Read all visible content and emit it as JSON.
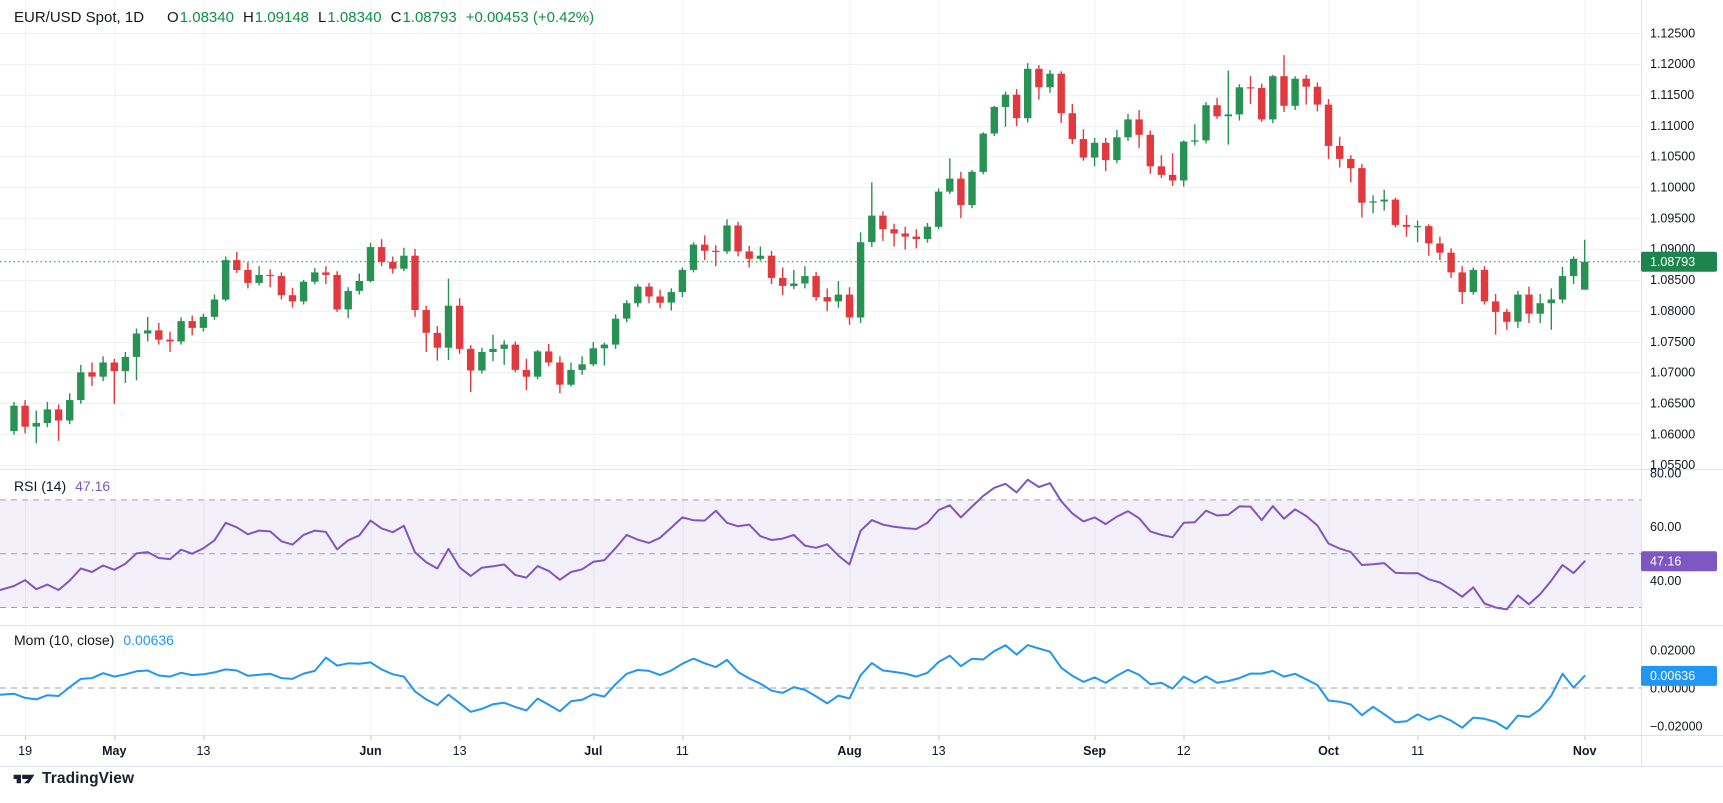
{
  "header": {
    "title": "EUR/USD Spot, 1D",
    "o_label": "O",
    "o_value": "1.08340",
    "h_label": "H",
    "h_value": "1.09148",
    "l_label": "L",
    "l_value": "1.08340",
    "c_label": "C",
    "c_value": "1.08793",
    "change": "+0.00453 (+0.42%)"
  },
  "legends": {
    "rsi": {
      "name": "RSI (14)",
      "value": "47.16"
    },
    "mom": {
      "name": "Mom (10, close)",
      "value": "0.00636"
    }
  },
  "footer": {
    "brand": "TradingView"
  },
  "colors": {
    "up": "#279253",
    "down": "#e1393d",
    "price_line": "#1d8450",
    "price_badge": "#1d8450",
    "rsi_line": "#7e57c2",
    "rsi_badge": "#7e57c2",
    "mom_line": "#2196f3",
    "mom_badge": "#2196f3",
    "grid": "#eef1f6",
    "separator": "#e1e4ec",
    "dashed": "#9da0aa",
    "text": "#131722",
    "badge_text": "#ffffff",
    "band_fill": "rgba(126,87,194,0.09)"
  },
  "price_axis": {
    "ticks": [
      "1.12500",
      "1.12000",
      "1.11500",
      "1.11000",
      "1.10500",
      "1.10000",
      "1.09500",
      "1.09000",
      "1.08500",
      "1.08000",
      "1.07500",
      "1.07000",
      "1.06500",
      "1.06000",
      "1.05500"
    ],
    "badge": "1.08793"
  },
  "rsi_axis": {
    "ticks": [
      "80.00",
      "60.00",
      "40.00"
    ],
    "badge": "47.16"
  },
  "mom_axis": {
    "ticks": [
      {
        "text": "0.02000",
        "v": 0.02
      },
      {
        "text": "0.00000",
        "v": 0
      },
      {
        "text": "−0.02000",
        "v": -0.02
      }
    ],
    "badge": "0.00636"
  },
  "time_axis": {
    "labels": [
      {
        "text": "19",
        "idx": 1,
        "bold": false
      },
      {
        "text": "May",
        "idx": 9,
        "bold": true
      },
      {
        "text": "13",
        "idx": 17,
        "bold": false
      },
      {
        "text": "Jun",
        "idx": 32,
        "bold": true
      },
      {
        "text": "13",
        "idx": 40,
        "bold": false
      },
      {
        "text": "Jul",
        "idx": 52,
        "bold": true
      },
      {
        "text": "11",
        "idx": 60,
        "bold": false
      },
      {
        "text": "Aug",
        "idx": 75,
        "bold": true
      },
      {
        "text": "13",
        "idx": 83,
        "bold": false
      },
      {
        "text": "Sep",
        "idx": 97,
        "bold": true
      },
      {
        "text": "12",
        "idx": 105,
        "bold": false
      },
      {
        "text": "Oct",
        "idx": 118,
        "bold": true
      },
      {
        "text": "11",
        "idx": 126,
        "bold": false
      },
      {
        "text": "Nov",
        "idx": 141,
        "bold": true
      }
    ]
  },
  "chart_data": {
    "type": "candlestick",
    "title": "EUR/USD Spot, 1D",
    "last_price": 1.08793,
    "price_axis_range": [
      1.0541,
      1.1304
    ],
    "grid": true,
    "candles": [
      [
        1.0605,
        1.0652,
        1.0599,
        1.0646
      ],
      [
        1.0646,
        1.0655,
        1.0601,
        1.0612
      ],
      [
        1.0612,
        1.0638,
        1.0585,
        1.0618
      ],
      [
        1.0618,
        1.0652,
        1.0611,
        1.064
      ],
      [
        1.064,
        1.0648,
        1.0589,
        1.0622
      ],
      [
        1.0622,
        1.0666,
        1.0616,
        1.0655
      ],
      [
        1.0655,
        1.0712,
        1.0649,
        1.07
      ],
      [
        1.07,
        1.0716,
        1.0678,
        1.0693
      ],
      [
        1.0693,
        1.0726,
        1.0686,
        1.0716
      ],
      [
        1.0716,
        1.0722,
        1.0649,
        1.0702
      ],
      [
        1.0702,
        1.0733,
        1.0683,
        1.0725
      ],
      [
        1.0725,
        1.0771,
        1.0687,
        1.0763
      ],
      [
        1.0763,
        1.079,
        1.075,
        1.0768
      ],
      [
        1.0768,
        1.078,
        1.0745,
        1.0753
      ],
      [
        1.0753,
        1.0766,
        1.0733,
        1.075
      ],
      [
        1.075,
        1.0789,
        1.0745,
        1.0783
      ],
      [
        1.0783,
        1.0792,
        1.076,
        1.0772
      ],
      [
        1.0772,
        1.0795,
        1.0766,
        1.079
      ],
      [
        1.079,
        1.0826,
        1.0785,
        1.0818
      ],
      [
        1.0818,
        1.0888,
        1.0815,
        1.0882
      ],
      [
        1.0882,
        1.0895,
        1.0861,
        1.0866
      ],
      [
        1.0866,
        1.0878,
        1.0836,
        1.0845
      ],
      [
        1.0845,
        1.0872,
        1.0841,
        1.0858
      ],
      [
        1.0858,
        1.0867,
        1.0838,
        1.0856
      ],
      [
        1.0856,
        1.0862,
        1.0818,
        1.0825
      ],
      [
        1.0825,
        1.0837,
        1.0805,
        1.0815
      ],
      [
        1.0815,
        1.085,
        1.081,
        1.0847
      ],
      [
        1.0847,
        1.0869,
        1.0843,
        1.0862
      ],
      [
        1.0862,
        1.0872,
        1.0843,
        1.0858
      ],
      [
        1.0858,
        1.0864,
        1.0798,
        1.0802
      ],
      [
        1.0802,
        1.0838,
        1.0788,
        1.0832
      ],
      [
        1.0832,
        1.086,
        1.0826,
        1.0848
      ],
      [
        1.0848,
        1.091,
        1.0846,
        1.0903
      ],
      [
        1.0903,
        1.0916,
        1.0872,
        1.0879
      ],
      [
        1.0879,
        1.0888,
        1.086,
        1.0868
      ],
      [
        1.0868,
        1.0902,
        1.0864,
        1.0889
      ],
      [
        1.0889,
        1.09,
        1.079,
        1.0801
      ],
      [
        1.0801,
        1.0808,
        1.0733,
        1.0764
      ],
      [
        1.0764,
        1.0775,
        1.0719,
        1.074
      ],
      [
        1.074,
        1.0852,
        1.072,
        1.0808
      ],
      [
        1.0808,
        1.082,
        1.073,
        1.0738
      ],
      [
        1.0738,
        1.0744,
        1.0668,
        1.0703
      ],
      [
        1.0703,
        1.074,
        1.0698,
        1.0733
      ],
      [
        1.0733,
        1.0761,
        1.0718,
        1.0738
      ],
      [
        1.0738,
        1.0752,
        1.0712,
        1.0745
      ],
      [
        1.0745,
        1.075,
        1.07,
        1.0704
      ],
      [
        1.0704,
        1.0722,
        1.0671,
        1.0693
      ],
      [
        1.0693,
        1.0736,
        1.0689,
        1.0734
      ],
      [
        1.0734,
        1.0746,
        1.071,
        1.0716
      ],
      [
        1.0716,
        1.0726,
        1.0666,
        1.068
      ],
      [
        1.068,
        1.0716,
        1.0677,
        1.0704
      ],
      [
        1.0704,
        1.0726,
        1.0696,
        1.0713
      ],
      [
        1.0713,
        1.0749,
        1.071,
        1.0739
      ],
      [
        1.0739,
        1.0748,
        1.0711,
        1.0745
      ],
      [
        1.0745,
        1.0794,
        1.0738,
        1.0787
      ],
      [
        1.0787,
        1.0817,
        1.0781,
        1.0812
      ],
      [
        1.0812,
        1.0843,
        1.0806,
        1.0839
      ],
      [
        1.0839,
        1.0845,
        1.0812,
        1.0823
      ],
      [
        1.0823,
        1.0834,
        1.0804,
        1.0813
      ],
      [
        1.0813,
        1.0836,
        1.08,
        1.083
      ],
      [
        1.083,
        1.087,
        1.0822,
        1.0866
      ],
      [
        1.0866,
        1.0911,
        1.0862,
        1.0907
      ],
      [
        1.0907,
        1.0922,
        1.0882,
        1.0897
      ],
      [
        1.0897,
        1.0906,
        1.0872,
        1.0896
      ],
      [
        1.0896,
        1.0948,
        1.0892,
        1.0938
      ],
      [
        1.0938,
        1.0944,
        1.0888,
        1.0896
      ],
      [
        1.0896,
        1.0905,
        1.087,
        1.0884
      ],
      [
        1.0884,
        1.0904,
        1.0881,
        1.0889
      ],
      [
        1.0889,
        1.0897,
        1.0843,
        1.0853
      ],
      [
        1.0853,
        1.087,
        1.0825,
        1.084
      ],
      [
        1.084,
        1.0866,
        1.0835,
        1.0844
      ],
      [
        1.0844,
        1.0872,
        1.0836,
        1.0856
      ],
      [
        1.0856,
        1.0863,
        1.0816,
        1.0822
      ],
      [
        1.0822,
        1.0836,
        1.0799,
        1.0815
      ],
      [
        1.0815,
        1.0848,
        1.0805,
        1.0826
      ],
      [
        1.0826,
        1.0838,
        1.0777,
        1.0789
      ],
      [
        1.0789,
        1.0927,
        1.078,
        1.0911
      ],
      [
        1.0911,
        1.1008,
        1.0903,
        1.0954
      ],
      [
        1.0954,
        1.0961,
        1.0913,
        1.0932
      ],
      [
        1.0932,
        1.0941,
        1.0904,
        1.0925
      ],
      [
        1.0925,
        1.0936,
        1.0899,
        1.092
      ],
      [
        1.092,
        1.0932,
        1.0901,
        1.0916
      ],
      [
        1.0916,
        1.0942,
        1.091,
        1.0936
      ],
      [
        1.0936,
        1.0998,
        1.0932,
        1.0993
      ],
      [
        1.0993,
        1.1047,
        1.0989,
        1.1014
      ],
      [
        1.1014,
        1.1025,
        1.095,
        1.0971
      ],
      [
        1.0971,
        1.1028,
        1.0966,
        1.1025
      ],
      [
        1.1025,
        1.1089,
        1.1021,
        1.1087
      ],
      [
        1.1087,
        1.1132,
        1.1083,
        1.113
      ],
      [
        1.113,
        1.1155,
        1.1098,
        1.115
      ],
      [
        1.115,
        1.1159,
        1.1099,
        1.1112
      ],
      [
        1.1112,
        1.1201,
        1.1105,
        1.1192
      ],
      [
        1.1192,
        1.1198,
        1.1142,
        1.1162
      ],
      [
        1.1162,
        1.119,
        1.1153,
        1.1184
      ],
      [
        1.1184,
        1.1188,
        1.1104,
        1.112
      ],
      [
        1.112,
        1.1135,
        1.107,
        1.1078
      ],
      [
        1.1078,
        1.1094,
        1.1043,
        1.1048
      ],
      [
        1.1048,
        1.108,
        1.1034,
        1.1072
      ],
      [
        1.1072,
        1.108,
        1.1026,
        1.1044
      ],
      [
        1.1044,
        1.1093,
        1.1039,
        1.1081
      ],
      [
        1.1081,
        1.1119,
        1.1075,
        1.111
      ],
      [
        1.111,
        1.1125,
        1.1064,
        1.1085
      ],
      [
        1.1085,
        1.1092,
        1.1022,
        1.1034
      ],
      [
        1.1034,
        1.1052,
        1.1015,
        1.102
      ],
      [
        1.102,
        1.1055,
        1.1002,
        1.1011
      ],
      [
        1.1011,
        1.1076,
        1.1001,
        1.1074
      ],
      [
        1.1074,
        1.1102,
        1.1068,
        1.1076
      ],
      [
        1.1076,
        1.1138,
        1.1071,
        1.1133
      ],
      [
        1.1133,
        1.1145,
        1.1111,
        1.1115
      ],
      [
        1.1115,
        1.1189,
        1.1069,
        1.1118
      ],
      [
        1.1118,
        1.1167,
        1.1108,
        1.1162
      ],
      [
        1.1162,
        1.118,
        1.1135,
        1.1161
      ],
      [
        1.1161,
        1.1168,
        1.1106,
        1.111
      ],
      [
        1.111,
        1.1182,
        1.1104,
        1.118
      ],
      [
        1.118,
        1.1214,
        1.1122,
        1.1132
      ],
      [
        1.1132,
        1.118,
        1.1125,
        1.1176
      ],
      [
        1.1176,
        1.1182,
        1.1134,
        1.1163
      ],
      [
        1.1163,
        1.117,
        1.1123,
        1.1134
      ],
      [
        1.1134,
        1.1143,
        1.1046,
        1.1067
      ],
      [
        1.1067,
        1.1082,
        1.1032,
        1.1046
      ],
      [
        1.1046,
        1.1052,
        1.1008,
        1.1031
      ],
      [
        1.1031,
        1.1038,
        1.0951,
        1.0975
      ],
      [
        1.0975,
        1.0987,
        1.0958,
        1.0977
      ],
      [
        1.0977,
        1.0996,
        1.0962,
        1.098
      ],
      [
        1.098,
        1.0983,
        1.0935,
        1.0939
      ],
      [
        1.0939,
        1.0955,
        1.092,
        1.0936
      ],
      [
        1.0936,
        1.0946,
        1.0911,
        1.0937
      ],
      [
        1.0937,
        1.094,
        1.0889,
        1.0909
      ],
      [
        1.0909,
        1.092,
        1.0882,
        1.0894
      ],
      [
        1.0894,
        1.0901,
        1.0853,
        1.0862
      ],
      [
        1.0862,
        1.0872,
        1.0811,
        1.083
      ],
      [
        1.083,
        1.087,
        1.0826,
        1.0866
      ],
      [
        1.0866,
        1.0872,
        1.081,
        1.0815
      ],
      [
        1.0815,
        1.0827,
        1.0761,
        1.0798
      ],
      [
        1.0798,
        1.0803,
        1.0769,
        1.0782
      ],
      [
        1.0782,
        1.0832,
        1.0772,
        1.0826
      ],
      [
        1.0826,
        1.0839,
        1.078,
        1.0795
      ],
      [
        1.0795,
        1.0827,
        1.078,
        1.0812
      ],
      [
        1.0812,
        1.0836,
        1.0769,
        1.0818
      ],
      [
        1.0818,
        1.0871,
        1.0812,
        1.0856
      ],
      [
        1.0856,
        1.0888,
        1.0843,
        1.0884
      ],
      [
        1.0834,
        1.09148,
        1.0834,
        1.08793
      ]
    ],
    "rsi": {
      "period": 14,
      "last": 47.16,
      "levels": [
        70,
        50,
        30
      ],
      "left_edge": 36.5,
      "values": [
        38.0,
        40.2,
        36.8,
        38.5,
        36.5,
        40.0,
        44.5,
        43.2,
        45.6,
        44.0,
        46.3,
        50.1,
        50.6,
        48.4,
        48.0,
        51.5,
        50.0,
        52.0,
        55.0,
        61.5,
        59.8,
        57.2,
        58.6,
        58.3,
        54.6,
        53.4,
        57.0,
        58.6,
        58.1,
        51.6,
        55.0,
        56.8,
        62.3,
        59.4,
        58.0,
        60.4,
        50.5,
        46.8,
        44.5,
        51.8,
        44.9,
        41.7,
        44.8,
        45.3,
        46.0,
        42.1,
        41.1,
        45.4,
        43.6,
        40.3,
        43.2,
        44.2,
        47.0,
        47.6,
        52.1,
        57.0,
        55.2,
        54.0,
        55.9,
        59.7,
        63.5,
        62.4,
        62.3,
        66.0,
        61.5,
        60.2,
        60.8,
        56.5,
        55.1,
        55.6,
        57.0,
        53.0,
        52.2,
        53.5,
        49.3,
        46.0,
        58.5,
        62.5,
        60.8,
        60.0,
        59.5,
        59.2,
        61.5,
        66.2,
        68.0,
        63.5,
        67.5,
        71.5,
        74.5,
        76.0,
        72.8,
        77.5,
        74.8,
        76.2,
        69.5,
        65.0,
        62.0,
        63.5,
        61.0,
        63.8,
        65.8,
        63.2,
        58.3,
        57.0,
        56.1,
        61.5,
        61.7,
        66.0,
        64.2,
        64.5,
        67.6,
        67.5,
        62.5,
        67.7,
        63.0,
        66.5,
        64.0,
        60.5,
        53.8,
        51.9,
        50.6,
        45.8,
        46.1,
        46.5,
        42.9,
        42.7,
        42.8,
        40.5,
        39.3,
        36.8,
        34.0,
        37.5,
        31.5,
        30.0,
        29.3,
        34.5,
        31.2,
        35.0,
        40.0,
        45.8,
        42.8,
        47.16
      ]
    },
    "mom": {
      "period": 10,
      "source": "close",
      "last": 0.00636,
      "left_edge": -0.0035,
      "values": [
        -0.003,
        -0.0052,
        -0.006,
        -0.0038,
        -0.0042,
        0.0005,
        0.0048,
        0.0052,
        0.0078,
        0.006,
        0.0072,
        0.0088,
        0.0092,
        0.0066,
        0.006,
        0.008,
        0.0068,
        0.0072,
        0.0082,
        0.0098,
        0.0092,
        0.0064,
        0.007,
        0.0075,
        0.0052,
        0.0048,
        0.0076,
        0.009,
        0.016,
        0.0118,
        0.013,
        0.0128,
        0.0135,
        0.0098,
        0.0072,
        0.006,
        -0.0018,
        -0.006,
        -0.009,
        -0.0035,
        -0.008,
        -0.0125,
        -0.011,
        -0.0085,
        -0.0078,
        -0.01,
        -0.0118,
        -0.0055,
        -0.0088,
        -0.0122,
        -0.007,
        -0.0062,
        -0.0032,
        -0.0045,
        0.002,
        0.0075,
        0.0095,
        0.009,
        0.0068,
        0.0092,
        0.0128,
        0.0155,
        0.013,
        0.011,
        0.0148,
        0.0084,
        0.005,
        0.0023,
        -0.0014,
        -0.0026,
        0.0005,
        -0.001,
        -0.0044,
        -0.0081,
        -0.004,
        -0.0055,
        0.0067,
        0.0131,
        0.0092,
        0.0085,
        0.0076,
        0.006,
        0.008,
        0.0137,
        0.017,
        0.0115,
        0.0154,
        0.015,
        0.0194,
        0.0225,
        0.0176,
        0.0226,
        0.0208,
        0.0191,
        0.0107,
        0.0064,
        0.0032,
        0.0056,
        0.0027,
        0.0065,
        0.0096,
        0.0069,
        0.002,
        0.0027,
        -0.0003,
        0.006,
        0.0028,
        0.0061,
        0.0028,
        0.0037,
        0.0052,
        0.0076,
        0.0076,
        0.009,
        0.006,
        0.0075,
        0.0046,
        0.0016,
        -0.0066,
        -0.0072,
        -0.0087,
        -0.0143,
        -0.0099,
        -0.0138,
        -0.018,
        -0.0175,
        -0.0139,
        -0.0168,
        -0.0145,
        -0.0172,
        -0.0209,
        -0.0156,
        -0.0162,
        -0.0179,
        -0.0215,
        -0.0145,
        -0.0152,
        -0.0112,
        -0.004,
        0.0075,
        0.0002,
        0.00636
      ]
    }
  }
}
